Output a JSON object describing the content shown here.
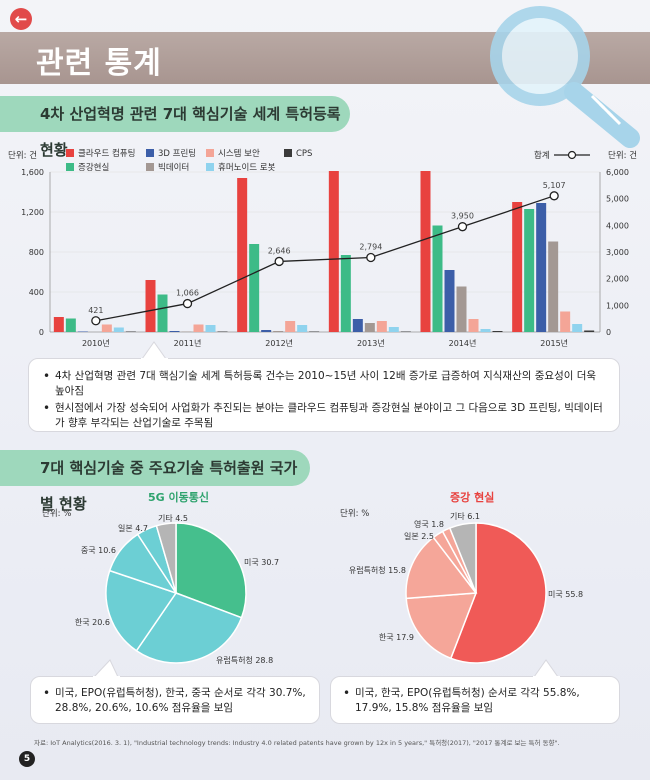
{
  "header": {
    "back_icon": "arrow-left-icon",
    "title": "관련 통계"
  },
  "section1": {
    "title": "4차 산업혁명 관련 7대 핵심기술 세계 특허등록 현황",
    "bullets": [
      "4차 산업혁명 관련 7대 핵심기술 세계 특허등록 건수는 2010~15년 사이 12배 증가로 급증하여 지식재산의 중요성이 더욱 높아짐",
      "현시점에서 가장 성숙되어 사업화가 추진되는 분야는 클라우드 컴퓨팅과 증강현실 분야이고 그 다음으로 3D 프린팅, 빅데이터가 향후 부각되는 산업기술로 주목됨"
    ]
  },
  "section2": {
    "title": "7대 핵심기술 중 주요기술 특허출원 국가별 현황",
    "left_bullet": "미국, EPO(유럽특허청), 한국, 중국 순서로 각각 30.7%, 28.8%, 20.6%, 10.6% 점유율을 보임",
    "right_bullet": "미국, 한국, EPO(유럽특허청) 순서로 각각 55.8%, 17.9%, 15.8% 점유율을 보임"
  },
  "source": "자료: IoT Analytics(2016. 3. 1), \"Industrial technology trends: Industry 4.0 related patents have grown by 12x in 5 years,\" 특허청(2017), \"2017 통계로 보는 특허 동향\".",
  "page_number": "5",
  "chart_data": [
    {
      "type": "bar",
      "title": "",
      "ylabel_left": "단위: 건",
      "ylabel_right": "단위: 건",
      "categories": [
        "2010년",
        "2011년",
        "2012년",
        "2013년",
        "2014년",
        "2015년"
      ],
      "ylim": [
        0,
        1600
      ],
      "yticks": [
        "0",
        "400",
        "800",
        "1,200",
        "1,600"
      ],
      "y2lim": [
        0,
        6000
      ],
      "y2ticks": [
        "0",
        "1,000",
        "2,000",
        "3,000",
        "4,000",
        "5,000",
        "6,000"
      ],
      "legend_placement": "top",
      "series": [
        {
          "name": "클라우드 컴퓨팅",
          "color": "#e8423f",
          "values": [
            150,
            520,
            1540,
            1610,
            1610,
            1300
          ]
        },
        {
          "name": "증강현실",
          "color": "#3dbb87",
          "values": [
            135,
            375,
            880,
            770,
            1065,
            1230
          ]
        },
        {
          "name": "3D 프린팅",
          "color": "#3c5ea8",
          "values": [
            5,
            10,
            20,
            130,
            620,
            1290
          ]
        },
        {
          "name": "빅데이터",
          "color": "#a39893",
          "values": [
            0,
            5,
            10,
            90,
            455,
            905
          ]
        },
        {
          "name": "시스템 보안",
          "color": "#f4a597",
          "values": [
            75,
            75,
            110,
            110,
            130,
            205
          ]
        },
        {
          "name": "휴머노이드 로봇",
          "color": "#8fd3ee",
          "values": [
            45,
            70,
            70,
            50,
            30,
            80
          ]
        },
        {
          "name": "CPS",
          "color": "#3a3a3a",
          "values": [
            5,
            5,
            5,
            5,
            10,
            15
          ]
        }
      ],
      "line": {
        "name": "합계",
        "color": "#222222",
        "values": [
          421,
          1066,
          2646,
          2794,
          3950,
          5107
        ],
        "labels": [
          "421",
          "1,066",
          "2,646",
          "2,794",
          "3,950",
          "5,107"
        ]
      }
    },
    {
      "type": "pie",
      "title": "5G 이동통신",
      "title_color": "#2fa36e",
      "unit": "단위: %",
      "slices": [
        {
          "label": "미국",
          "value": 30.7,
          "text": "미국 30.7",
          "color": "#45bf8d"
        },
        {
          "label": "유럽특허청",
          "value": 28.8,
          "text": "유럽특허청 28.8",
          "color": "#6ccfd4"
        },
        {
          "label": "한국",
          "value": 20.6,
          "text": "한국 20.6",
          "color": "#6ccfd4"
        },
        {
          "label": "중국",
          "value": 10.6,
          "text": "중국 10.6",
          "color": "#6ccfd4"
        },
        {
          "label": "일본",
          "value": 4.7,
          "text": "일본 4.7",
          "color": "#6ccfd4"
        },
        {
          "label": "기타",
          "value": 4.5,
          "text": "기타 4.5",
          "color": "#b5b5b5"
        }
      ]
    },
    {
      "type": "pie",
      "title": "증강 현실",
      "title_color": "#e8423f",
      "unit": "단위: %",
      "slices": [
        {
          "label": "미국",
          "value": 55.8,
          "text": "미국 55.8",
          "color": "#f05a57"
        },
        {
          "label": "한국",
          "value": 17.9,
          "text": "한국 17.9",
          "color": "#f5a699"
        },
        {
          "label": "유럽특허청",
          "value": 15.8,
          "text": "유럽특허청 15.8",
          "color": "#f5a699"
        },
        {
          "label": "일본",
          "value": 2.5,
          "text": "일본 2.5",
          "color": "#f5a699"
        },
        {
          "label": "영국",
          "value": 1.8,
          "text": "영국 1.8",
          "color": "#f5a699"
        },
        {
          "label": "기타",
          "value": 6.1,
          "text": "기타 6.1",
          "color": "#b5b5b5"
        }
      ]
    }
  ]
}
